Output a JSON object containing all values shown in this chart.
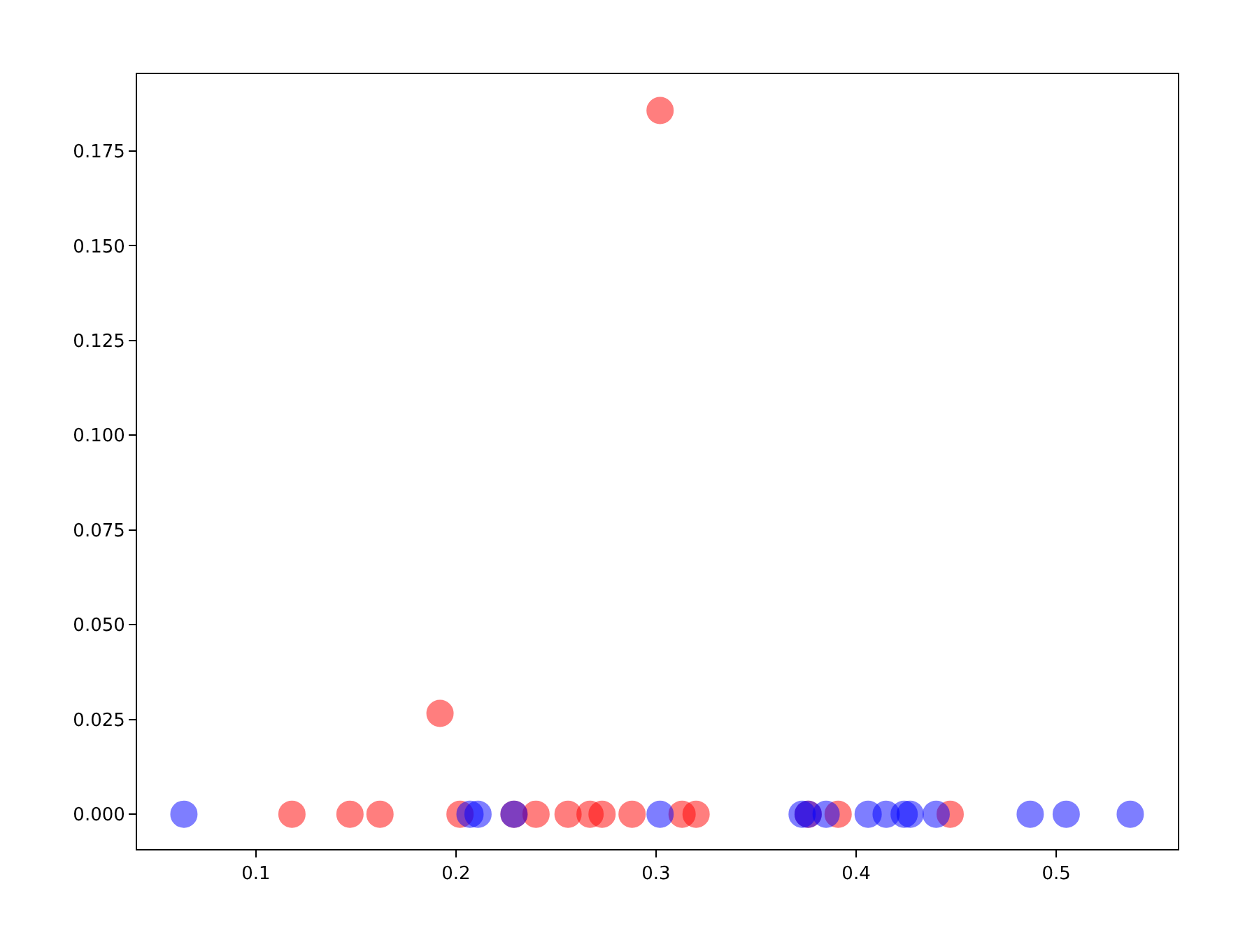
{
  "chart_data": {
    "type": "scatter",
    "marker": "circle",
    "xlim": [
      0.0406,
      0.5608
    ],
    "ylim": [
      -0.0092,
      0.1953
    ],
    "xticks": [
      0.1,
      0.2,
      0.3,
      0.4,
      0.5
    ],
    "yticks": [
      {
        "value": 0,
        "label": "0.000"
      },
      {
        "value": 0.025,
        "label": "0.025"
      },
      {
        "value": 0.05,
        "label": "0.050"
      },
      {
        "value": 0.075,
        "label": "0.075"
      },
      {
        "value": 0.1,
        "label": "0.100"
      },
      {
        "value": 0.125,
        "label": "0.125"
      },
      {
        "value": 0.15,
        "label": "0.150"
      },
      {
        "value": 0.175,
        "label": "0.175"
      }
    ],
    "series": [
      {
        "color": "#ff0000",
        "x": [
          0.118,
          0.147,
          0.162,
          0.202,
          0.229,
          0.24,
          0.256,
          0.267,
          0.273,
          0.288,
          0.313,
          0.32,
          0.376,
          0.391,
          0.447,
          0.192,
          0.302
        ],
        "values": [
          0,
          0,
          0,
          0,
          0,
          0,
          0,
          0,
          0,
          0,
          0,
          0,
          0,
          0,
          0,
          0.0266,
          0.1857
        ]
      },
      {
        "color": "#0000ff",
        "x": [
          0.064,
          0.207,
          0.211,
          0.229,
          0.302,
          0.373,
          0.376,
          0.385,
          0.406,
          0.415,
          0.424,
          0.427,
          0.44,
          0.487,
          0.505,
          0.537
        ],
        "values": [
          0,
          0,
          0,
          0,
          0,
          0,
          0,
          0,
          0,
          0,
          0,
          0,
          0,
          0,
          0,
          0
        ]
      }
    ]
  }
}
